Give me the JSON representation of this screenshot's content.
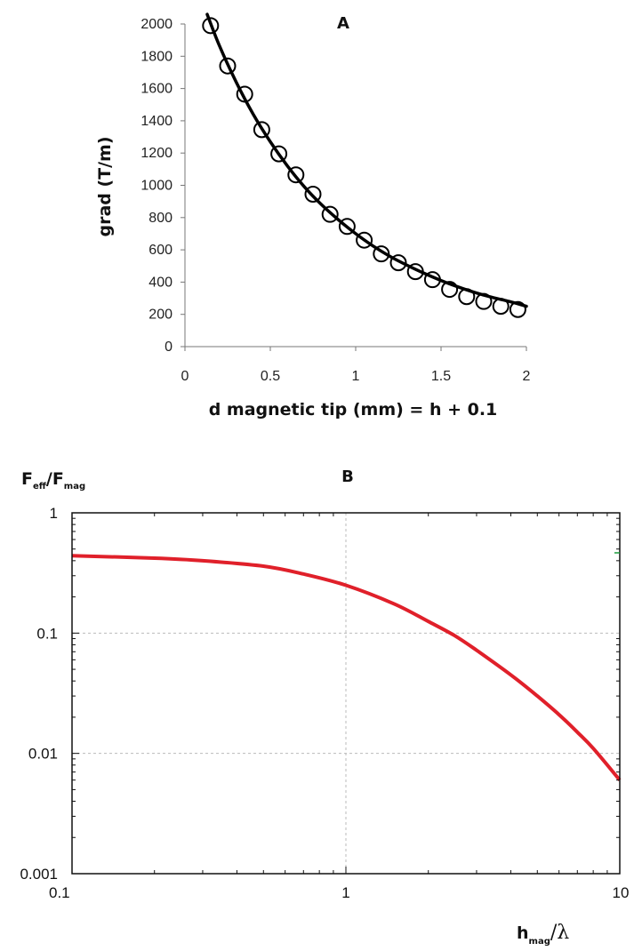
{
  "chart_data": [
    {
      "type": "scatter",
      "title": "A",
      "xlabel": "d magnetic tip (mm) = h + 0.1",
      "ylabel": "grad (T/m)",
      "xlim": [
        0,
        2
      ],
      "ylim": [
        0,
        2000
      ],
      "xticks": [
        "0",
        "0.5",
        "1",
        "1.5",
        "2"
      ],
      "yticks": [
        "0",
        "200",
        "400",
        "600",
        "800",
        "1000",
        "1200",
        "1400",
        "1600",
        "1800",
        "2000"
      ],
      "grid": false,
      "series": [
        {
          "kind": "markers",
          "marker": "open-circle",
          "color": "#000000",
          "x": [
            0.15,
            0.25,
            0.35,
            0.45,
            0.55,
            0.65,
            0.75,
            0.85,
            0.95,
            1.05,
            1.15,
            1.25,
            1.35,
            1.45,
            1.55,
            1.65,
            1.75,
            1.85,
            1.95
          ],
          "y": [
            1990,
            1740,
            1565,
            1345,
            1195,
            1065,
            945,
            820,
            745,
            660,
            575,
            520,
            465,
            415,
            355,
            310,
            280,
            250,
            230
          ]
        },
        {
          "kind": "line",
          "color": "#000000",
          "x": [
            0.13,
            0.2,
            0.3,
            0.4,
            0.5,
            0.6,
            0.7,
            0.8,
            0.9,
            1.0,
            1.1,
            1.2,
            1.3,
            1.4,
            1.5,
            1.6,
            1.7,
            1.8,
            1.9,
            2.0
          ],
          "y": [
            2060,
            1870,
            1640,
            1440,
            1270,
            1120,
            990,
            880,
            785,
            700,
            625,
            560,
            505,
            455,
            410,
            370,
            335,
            305,
            280,
            250
          ]
        }
      ]
    },
    {
      "type": "line",
      "title": "B",
      "ylabel_main": "F",
      "ylabel_sub1": "eff",
      "ylabel_mid": "/F",
      "ylabel_sub2": "mag",
      "xlabel_main": "h",
      "xlabel_sub": "mag",
      "xlabel_tail": "/λ",
      "xscale": "log",
      "yscale": "log",
      "xlim": [
        0.1,
        10
      ],
      "ylim": [
        0.001,
        1
      ],
      "xticks": [
        "0.1",
        "1",
        "10"
      ],
      "yticks": [
        "1",
        "0.1",
        "0.01",
        "0.001"
      ],
      "grid": true,
      "series": [
        {
          "color": "#e0202a",
          "x": [
            0.1,
            0.2,
            0.3,
            0.5,
            0.7,
            1.0,
            1.5,
            2.0,
            2.5,
            3.0,
            4.0,
            5.0,
            6.0,
            7.0,
            8.0,
            10.0
          ],
          "y": [
            0.44,
            0.42,
            0.4,
            0.36,
            0.31,
            0.25,
            0.175,
            0.125,
            0.095,
            0.072,
            0.045,
            0.03,
            0.021,
            0.015,
            0.011,
            0.006
          ]
        }
      ]
    }
  ]
}
